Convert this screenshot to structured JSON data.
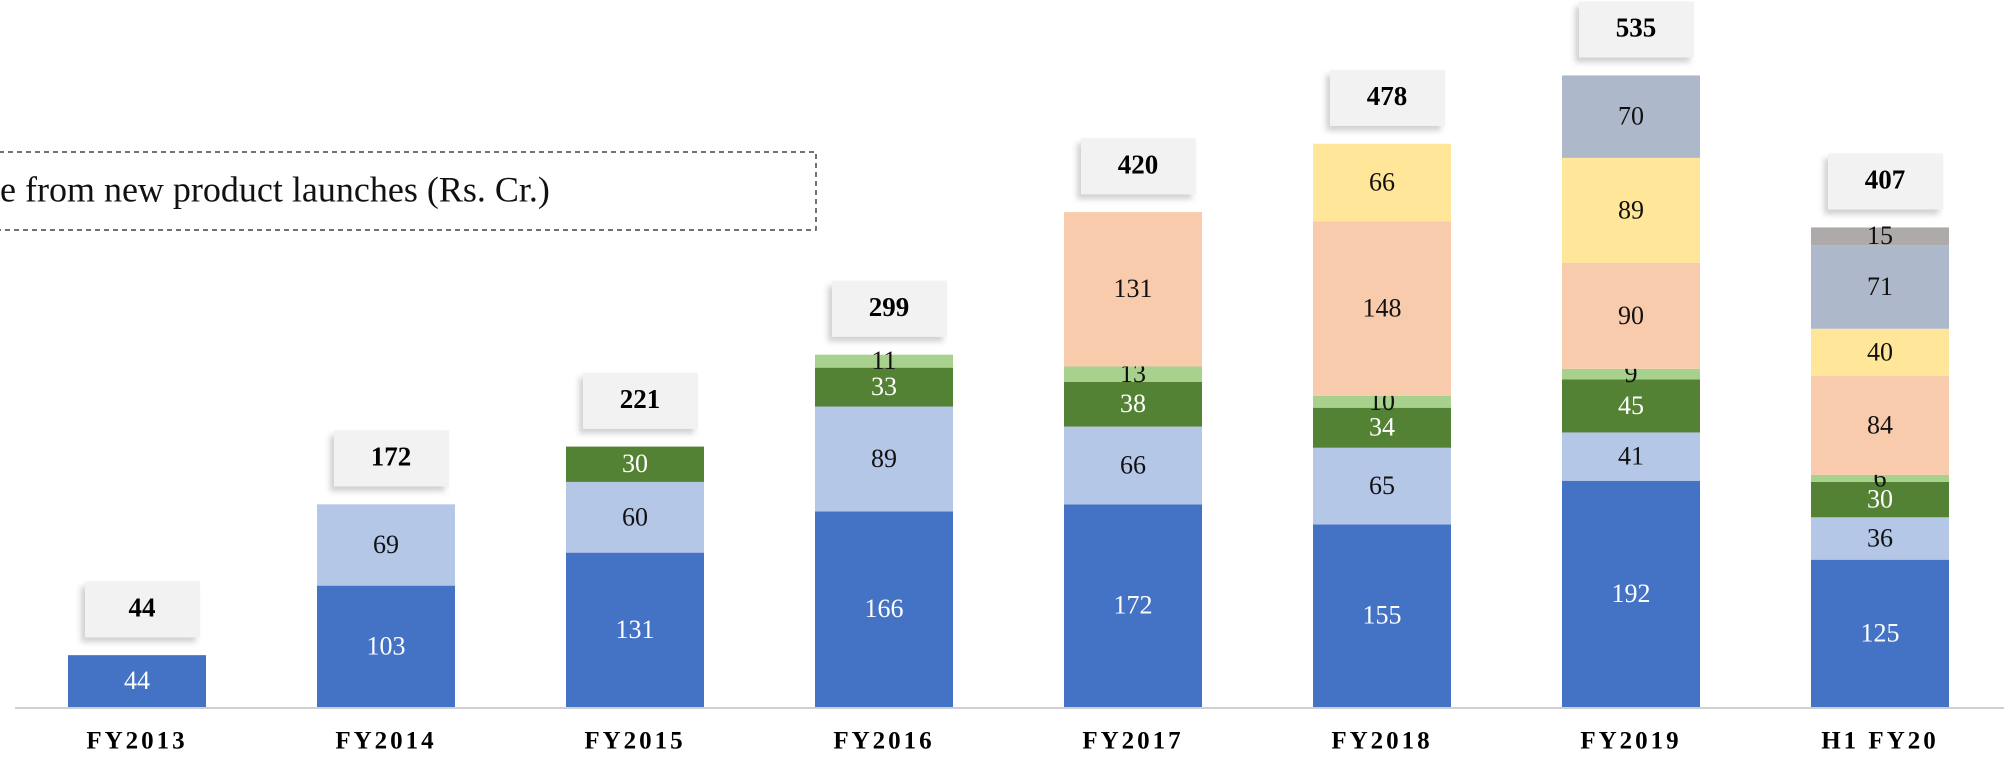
{
  "chart_data": {
    "type": "stacked_bar",
    "title": "e from new product launches (Rs. Cr.)",
    "categories": [
      "FY2013",
      "FY2014",
      "FY2015",
      "FY2016",
      "FY2017",
      "FY2018",
      "FY2019",
      "H1 FY20"
    ],
    "series": [
      {
        "color": "#4472c4",
        "values": [
          44,
          103,
          131,
          166,
          172,
          155,
          192,
          125
        ]
      },
      {
        "color": "#b4c7e7",
        "values": [
          null,
          69,
          60,
          89,
          66,
          65,
          41,
          36
        ]
      },
      {
        "color": "#548235",
        "values": [
          null,
          null,
          30,
          33,
          38,
          34,
          45,
          30
        ]
      },
      {
        "color": "#a9d18e",
        "values": [
          null,
          null,
          null,
          11,
          13,
          10,
          9,
          6
        ]
      },
      {
        "color": "#f8cbad",
        "values": [
          null,
          null,
          null,
          null,
          131,
          148,
          90,
          84
        ]
      },
      {
        "color": "#ffe699",
        "values": [
          null,
          null,
          null,
          null,
          null,
          66,
          89,
          40
        ]
      },
      {
        "color": "#adb9ca",
        "values": [
          null,
          null,
          null,
          null,
          null,
          null,
          70,
          71
        ]
      },
      {
        "color": "#aeaaaa",
        "values": [
          null,
          null,
          null,
          null,
          null,
          null,
          null,
          15
        ]
      }
    ],
    "totals": [
      44,
      172,
      221,
      299,
      420,
      478,
      535,
      407
    ],
    "ylim": [
      0,
      600
    ]
  }
}
